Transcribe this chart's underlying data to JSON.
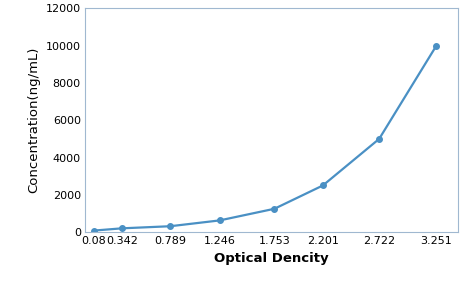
{
  "x": [
    0.08,
    0.342,
    0.789,
    1.246,
    1.753,
    2.201,
    2.722,
    3.251
  ],
  "y": [
    78,
    200,
    313,
    625,
    1250,
    2500,
    5000,
    10000
  ],
  "line_color": "#4a90c4",
  "marker_color": "#4a90c4",
  "xlabel": "Optical Dencity",
  "ylabel": "Concentration(ng/mL)",
  "xlim": [
    0.0,
    3.45
  ],
  "ylim": [
    0,
    12000
  ],
  "yticks": [
    0,
    2000,
    4000,
    6000,
    8000,
    10000,
    12000
  ],
  "xticks": [
    0.08,
    0.342,
    0.789,
    1.246,
    1.753,
    2.201,
    2.722,
    3.251
  ],
  "xlabel_fontsize": 9.5,
  "ylabel_fontsize": 9.5,
  "tick_fontsize": 8,
  "background_color": "#ffffff",
  "spine_color": "#a0b8d0"
}
